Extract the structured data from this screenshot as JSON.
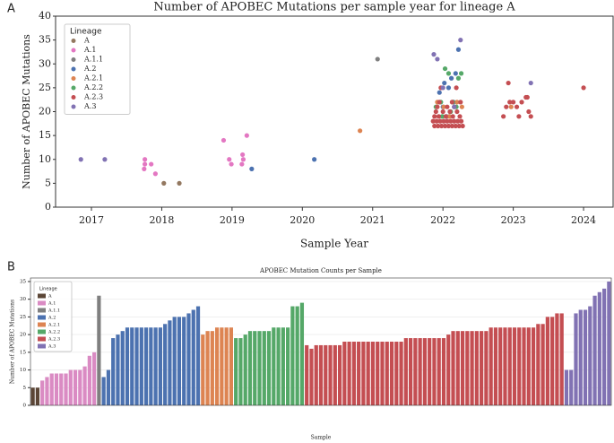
{
  "chart_data": [
    {
      "type": "scatter",
      "panel_label": "A",
      "title": "Number of APOBEC Mutations per sample year for lineage A",
      "xlabel": "Sample Year",
      "ylabel": "Number of APOBEC Mutations",
      "xlim": [
        2016.49,
        2024.42
      ],
      "xticks": [
        2017,
        2018,
        2019,
        2020,
        2021,
        2022,
        2023,
        2024
      ],
      "ylim": [
        0,
        40
      ],
      "yticks": [
        0,
        5,
        10,
        15,
        20,
        25,
        30,
        35,
        40
      ],
      "grid": false,
      "legend": "upper left",
      "legend_title": "Lineage",
      "series": [
        {
          "name": "A",
          "color": "#937860",
          "x": [
            2018.03,
            2018.25
          ],
          "values": [
            5,
            5
          ]
        },
        {
          "name": "A.1",
          "color": "#e377c2",
          "x": [
            2017.75,
            2017.76,
            2017.85,
            2017.76,
            2017.91,
            2018.88,
            2018.96,
            2018.99,
            2019.15,
            2019.16,
            2019.14,
            2019.21
          ],
          "values": [
            8,
            10,
            9,
            9,
            7,
            14,
            10,
            9,
            11,
            10,
            9,
            15
          ]
        },
        {
          "name": "A.1.1",
          "color": "#7f7f7f",
          "x": [
            2021.07
          ],
          "values": [
            31
          ]
        },
        {
          "name": "A.2",
          "color": "#4c72b0",
          "x": [
            2019.28,
            2020.17,
            2022.05,
            2022.1,
            2022.15,
            2021.95,
            2022.02,
            2022.12,
            2022.18,
            2022.08,
            2022.0,
            2022.22
          ],
          "values": [
            8,
            10,
            19,
            20,
            22,
            24,
            26,
            27,
            28,
            25,
            21,
            33
          ]
        },
        {
          "name": "A.2.1",
          "color": "#dd8452",
          "x": [
            2020.82,
            2021.92,
            2022.01,
            2022.09,
            2022.2,
            2022.27,
            2022.97
          ],
          "values": [
            16,
            22,
            21,
            19,
            22,
            21,
            21
          ]
        },
        {
          "name": "A.2.2",
          "color": "#55a868",
          "x": [
            2021.9,
            2021.97,
            2022.03,
            2022.08,
            2022.14,
            2022.19,
            2022.22,
            2022.26,
            2021.99,
            2022.11
          ],
          "values": [
            21,
            22,
            29,
            28,
            22,
            21,
            27,
            28,
            19,
            20
          ]
        },
        {
          "name": "A.2.3",
          "color": "#c44e52",
          "x": [
            2021.88,
            2021.93,
            2021.98,
            2022.03,
            2022.08,
            2022.13,
            2022.18,
            2022.23,
            2022.28,
            2021.86,
            2021.91,
            2021.96,
            2022.01,
            2022.06,
            2022.11,
            2022.16,
            2022.21,
            2022.26,
            2021.88,
            2021.94,
            2022.04,
            2022.14,
            2022.24,
            2021.9,
            2022.0,
            2022.1,
            2022.2,
            2021.92,
            2022.06,
            2022.16,
            2021.95,
            2022.13,
            2022.25,
            2021.97,
            2022.19,
            2022.86,
            2022.9,
            2022.95,
            2023.0,
            2023.05,
            2023.12,
            2023.18,
            2023.22,
            2022.93,
            2023.08,
            2023.2,
            2023.25,
            2024.0
          ],
          "values": [
            17,
            17,
            17,
            17,
            17,
            17,
            17,
            17,
            17,
            18,
            18,
            18,
            18,
            18,
            18,
            18,
            18,
            18,
            19,
            19,
            19,
            19,
            19,
            20,
            20,
            20,
            20,
            21,
            21,
            21,
            22,
            22,
            22,
            25,
            25,
            19,
            21,
            22,
            22,
            21,
            22,
            23,
            20,
            26,
            19,
            23,
            19,
            25
          ]
        },
        {
          "name": "A.3",
          "color": "#8172b3",
          "x": [
            2016.85,
            2017.19,
            2021.87,
            2021.92,
            2022.0,
            2022.25,
            2022.16,
            2023.25
          ],
          "values": [
            10,
            10,
            32,
            31,
            25,
            35,
            21,
            26
          ]
        }
      ]
    },
    {
      "type": "bar",
      "panel_label": "B",
      "title": "APOBEC Mutation Counts per Sample",
      "xlabel": "Sample",
      "ylabel": "Number of APOBEC Mutations",
      "ylim": [
        0,
        36
      ],
      "yticks": [
        0,
        5,
        10,
        15,
        20,
        25,
        30,
        35
      ],
      "grid": true,
      "legend": "upper left",
      "legend_title": "Lineage",
      "series": [
        {
          "name": "A",
          "color": "#5b4636",
          "values": [
            5,
            5
          ]
        },
        {
          "name": "A.1",
          "color": "#da8bc3",
          "values": [
            7,
            8,
            9,
            9,
            9,
            9,
            10,
            10,
            10,
            11,
            14,
            15
          ]
        },
        {
          "name": "A.1.1",
          "color": "#7f7f7f",
          "values": [
            31
          ]
        },
        {
          "name": "A.2",
          "color": "#4c72b0",
          "values": [
            8,
            10,
            19,
            20,
            21,
            22,
            22,
            22,
            22,
            22,
            22,
            22,
            22,
            23,
            24,
            25,
            25,
            25,
            26,
            27,
            28
          ]
        },
        {
          "name": "A.2.1",
          "color": "#dd8452",
          "values": [
            20,
            21,
            21,
            22,
            22,
            22,
            22
          ]
        },
        {
          "name": "A.2.2",
          "color": "#55a868",
          "values": [
            19,
            19,
            20,
            21,
            21,
            21,
            21,
            21,
            22,
            22,
            22,
            22,
            28,
            28,
            29
          ]
        },
        {
          "name": "A.2.3",
          "color": "#c44e52",
          "values": [
            17,
            16,
            17,
            17,
            17,
            17,
            17,
            17,
            18,
            18,
            18,
            18,
            18,
            18,
            18,
            18,
            18,
            18,
            18,
            18,
            18,
            19,
            19,
            19,
            19,
            19,
            19,
            19,
            19,
            19,
            20,
            21,
            21,
            21,
            21,
            21,
            21,
            21,
            21,
            22,
            22,
            22,
            22,
            22,
            22,
            22,
            22,
            22,
            22,
            23,
            23,
            25,
            25,
            26,
            26
          ]
        },
        {
          "name": "A.3",
          "color": "#8172b3",
          "values": [
            10,
            10,
            26,
            27,
            27,
            28,
            31,
            32,
            33,
            35
          ]
        }
      ]
    }
  ]
}
